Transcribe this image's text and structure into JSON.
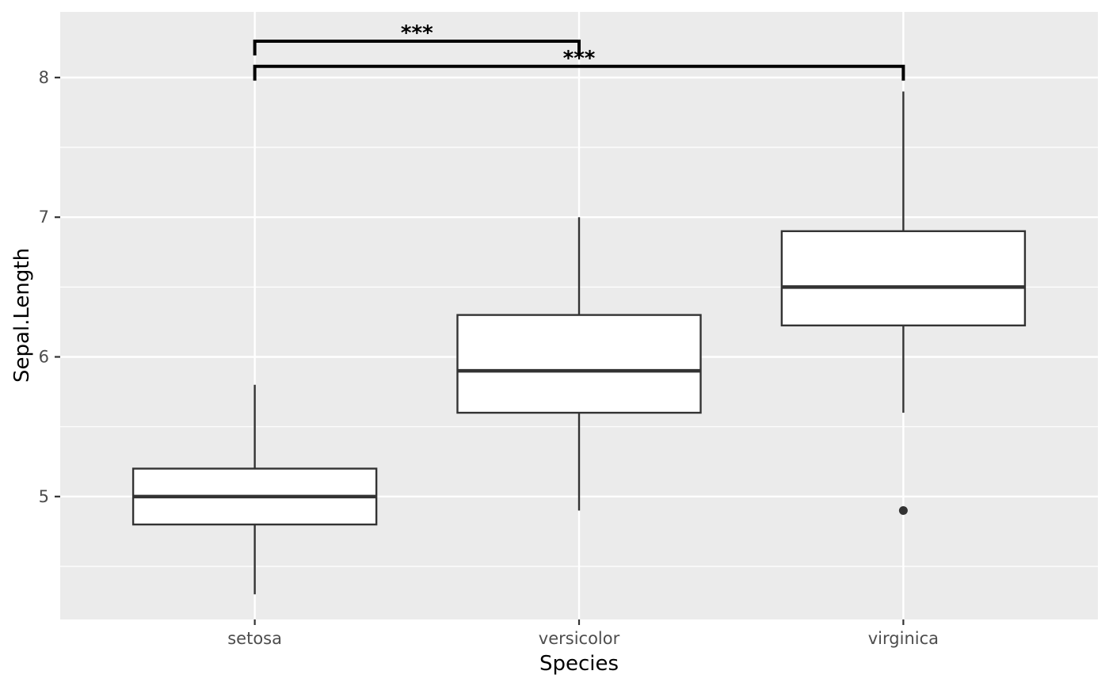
{
  "chart_data": {
    "type": "boxplot",
    "title": "",
    "xlabel": "Species",
    "ylabel": "Sepal.Length",
    "categories": [
      "setosa",
      "versicolor",
      "virginica"
    ],
    "boxes": [
      {
        "category": "setosa",
        "min": 4.3,
        "q1": 4.8,
        "median": 5.0,
        "q3": 5.2,
        "max": 5.8,
        "outliers": []
      },
      {
        "category": "versicolor",
        "min": 4.9,
        "q1": 5.6,
        "median": 5.9,
        "q3": 6.3,
        "max": 7.0,
        "outliers": []
      },
      {
        "category": "virginica",
        "min": 5.6,
        "q1": 6.225,
        "median": 6.5,
        "q3": 6.9,
        "max": 7.9,
        "outliers": [
          4.9
        ]
      }
    ],
    "ylim": [
      4.12,
      8.47
    ],
    "yticks": [
      5,
      6,
      7,
      8
    ],
    "ytick_labels": [
      "5",
      "6",
      "7",
      "8"
    ],
    "grid": true,
    "significance": [
      {
        "from": "setosa",
        "to": "versicolor",
        "y": 8.26,
        "label": "***"
      },
      {
        "from": "setosa",
        "to": "virginica",
        "y": 8.08,
        "label": "***"
      }
    ],
    "colors": {
      "panel_background": "#ebebeb",
      "grid_major": "#ffffff",
      "box_fill": "#ffffff",
      "box_stroke": "#333333",
      "bracket": "#000000"
    }
  }
}
